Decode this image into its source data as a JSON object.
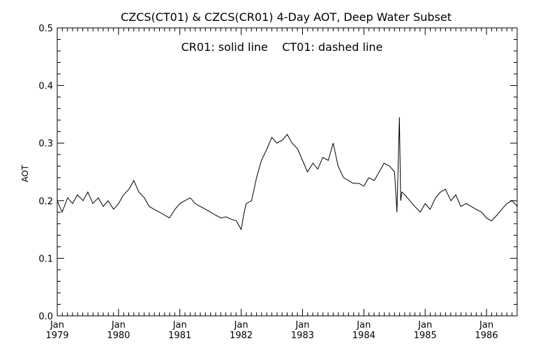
{
  "chart_data": {
    "type": "line",
    "title": "CZCS(CT01) & CZCS(CR01) 4-Day AOT, Deep Water Subset",
    "annotation": "CR01: solid line    CT01: dashed line",
    "xlabel": "",
    "ylabel": "AOT",
    "xlim": [
      1979.0,
      1986.5
    ],
    "ylim": [
      0.0,
      0.5
    ],
    "grid": false,
    "yticks": [
      "0.0",
      "0.1",
      "0.2",
      "0.3",
      "0.4",
      "0.5"
    ],
    "xticks": [
      {
        "month": "Jan",
        "year": "1979"
      },
      {
        "month": "Jan",
        "year": "1980"
      },
      {
        "month": "Jan",
        "year": "1981"
      },
      {
        "month": "Jan",
        "year": "1982"
      },
      {
        "month": "Jan",
        "year": "1983"
      },
      {
        "month": "Jan",
        "year": "1984"
      },
      {
        "month": "Jan",
        "year": "1985"
      },
      {
        "month": "Jan",
        "year": "1986"
      }
    ],
    "series": [
      {
        "name": "CR01",
        "style": "solid",
        "color": "#000000",
        "x": [
          1979.0,
          1979.08,
          1979.17,
          1979.25,
          1979.33,
          1979.42,
          1979.5,
          1979.58,
          1979.67,
          1979.75,
          1979.83,
          1979.92,
          1980.0,
          1980.08,
          1980.17,
          1980.25,
          1980.33,
          1980.42,
          1980.5,
          1980.58,
          1980.67,
          1980.75,
          1980.83,
          1980.92,
          1981.0,
          1981.08,
          1981.17,
          1981.25,
          1981.33,
          1981.42,
          1981.5,
          1981.58,
          1981.67,
          1981.75,
          1981.83,
          1981.92,
          1982.0,
          1982.04,
          1982.08,
          1982.17,
          1982.25,
          1982.33,
          1982.42,
          1982.5,
          1982.58,
          1982.67,
          1982.75,
          1982.83,
          1982.92,
          1983.0,
          1983.08,
          1983.17,
          1983.25,
          1983.33,
          1983.42,
          1983.5,
          1983.58,
          1983.67,
          1983.75,
          1983.83,
          1983.92,
          1984.0,
          1984.08,
          1984.17,
          1984.25,
          1984.33,
          1984.42,
          1984.5,
          1984.54,
          1984.58,
          1984.6,
          1984.62,
          1984.67,
          1984.75,
          1984.83,
          1984.92,
          1985.0,
          1985.08,
          1985.17,
          1985.25,
          1985.33,
          1985.42,
          1985.5,
          1985.58,
          1985.67,
          1985.75,
          1985.83,
          1985.92,
          1986.0,
          1986.08,
          1986.17,
          1986.25,
          1986.33,
          1986.42,
          1986.5
        ],
        "values": [
          0.2,
          0.18,
          0.205,
          0.195,
          0.21,
          0.2,
          0.215,
          0.195,
          0.205,
          0.19,
          0.2,
          0.185,
          0.195,
          0.21,
          0.22,
          0.235,
          0.215,
          0.205,
          0.19,
          0.185,
          0.18,
          0.175,
          0.17,
          0.185,
          0.195,
          0.2,
          0.205,
          0.195,
          0.19,
          0.185,
          0.18,
          0.175,
          0.17,
          0.172,
          0.168,
          0.165,
          0.15,
          0.175,
          0.195,
          0.2,
          0.24,
          0.27,
          0.29,
          0.31,
          0.3,
          0.305,
          0.315,
          0.3,
          0.29,
          0.27,
          0.25,
          0.265,
          0.255,
          0.275,
          0.27,
          0.3,
          0.26,
          0.24,
          0.235,
          0.23,
          0.23,
          0.225,
          0.24,
          0.235,
          0.25,
          0.265,
          0.26,
          0.25,
          0.18,
          0.345,
          0.2,
          0.215,
          0.21,
          0.2,
          0.19,
          0.18,
          0.195,
          0.185,
          0.205,
          0.215,
          0.22,
          0.2,
          0.21,
          0.19,
          0.195,
          0.19,
          0.185,
          0.18,
          0.17,
          0.165,
          0.175,
          0.185,
          0.195,
          0.2,
          0.19
        ]
      }
    ]
  }
}
